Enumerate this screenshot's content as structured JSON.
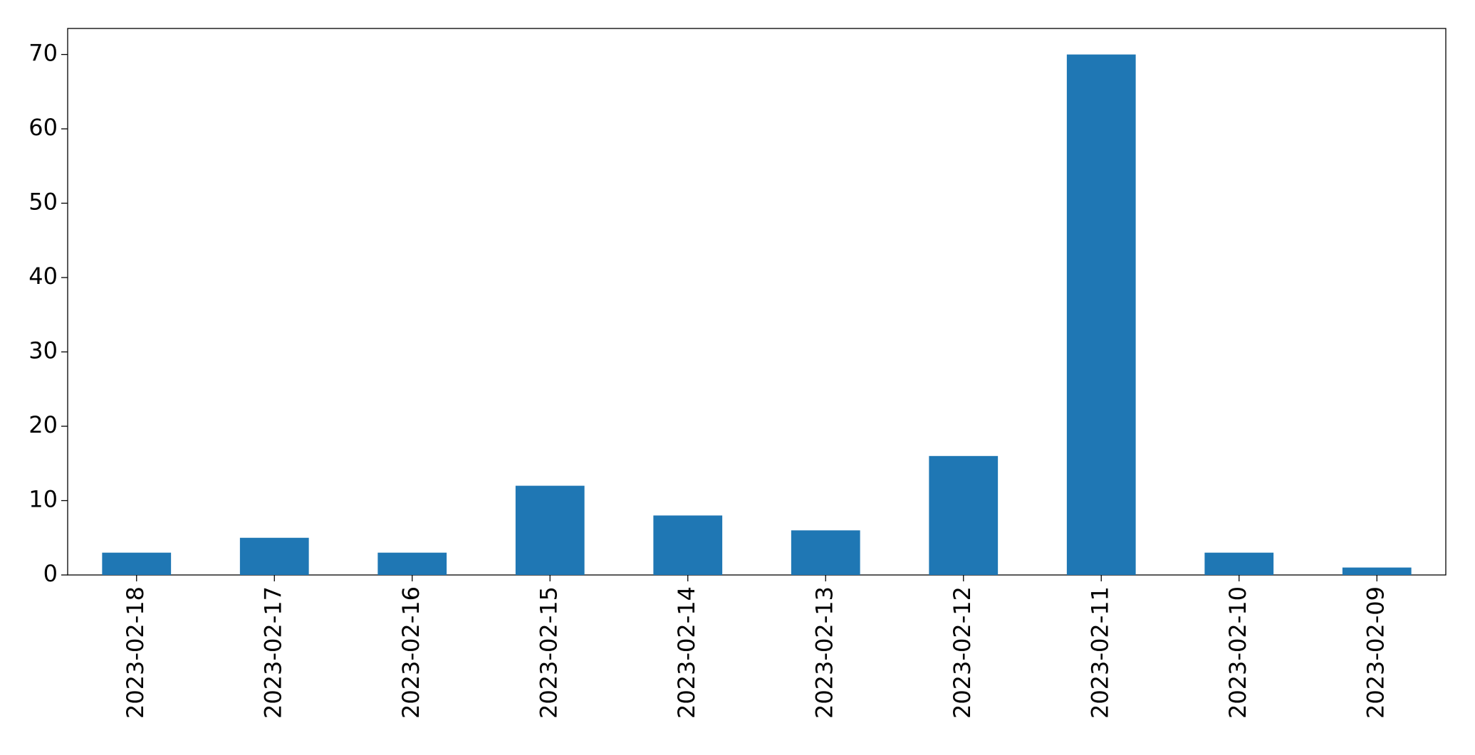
{
  "chart_data": {
    "type": "bar",
    "categories": [
      "2023-02-18",
      "2023-02-17",
      "2023-02-16",
      "2023-02-15",
      "2023-02-14",
      "2023-02-13",
      "2023-02-12",
      "2023-02-11",
      "2023-02-10",
      "2023-02-09"
    ],
    "values": [
      3,
      5,
      3,
      12,
      8,
      6,
      16,
      70,
      3,
      1
    ],
    "color": "#1f77b4",
    "ylim": [
      0,
      73.5
    ],
    "yticks": [
      0,
      10,
      20,
      30,
      40,
      50,
      60,
      70
    ],
    "grid": false
  }
}
